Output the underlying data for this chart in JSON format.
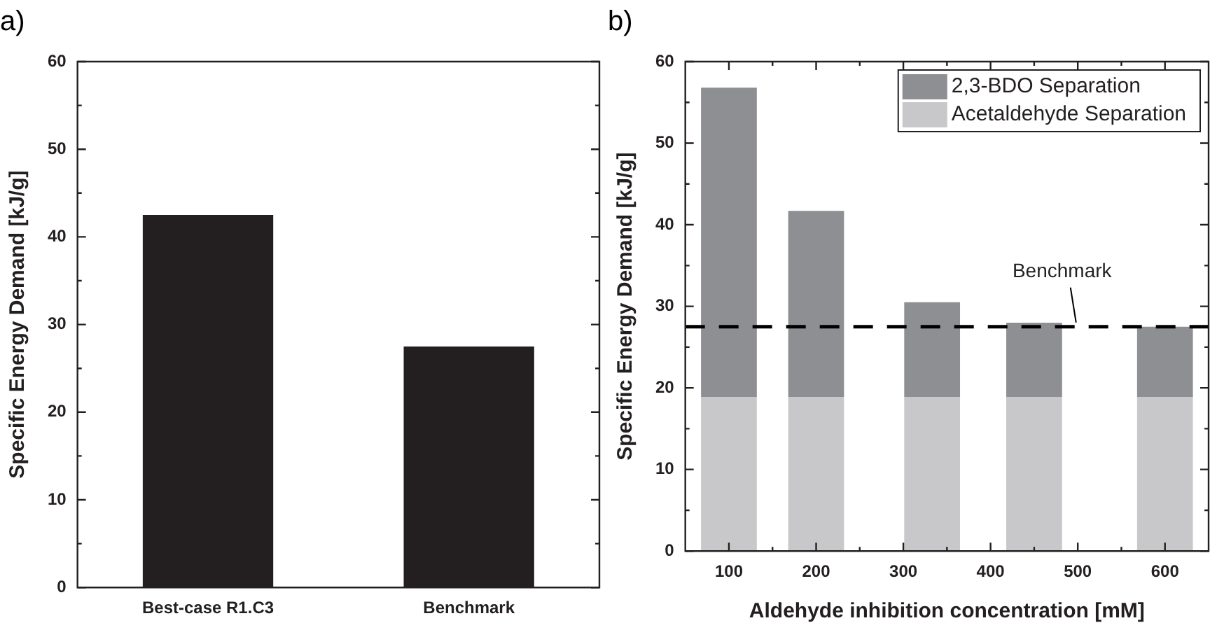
{
  "chart_data": [
    {
      "type": "bar",
      "title": "a)",
      "ylabel": "Specific Energy Demand [kJ/g]",
      "categories": [
        "Best-case R1.C3",
        "Benchmark"
      ],
      "values": [
        42.5,
        27.5
      ],
      "color": "#231f20",
      "ylim": [
        0,
        60
      ],
      "yticks": [
        0,
        {
          "value": 5,
          "label": null
        },
        10,
        {
          "value": 15,
          "label": null
        },
        20,
        {
          "value": 25,
          "label": null
        },
        30,
        {
          "value": 35,
          "label": null
        },
        40,
        {
          "value": 45,
          "label": null
        },
        50,
        {
          "value": 55,
          "label": null
        },
        60
      ],
      "grid": false,
      "legend": false
    },
    {
      "type": "bar",
      "title": "b)",
      "xlabel": "Aldehyde inhibition concentration [mM]",
      "ylabel": "Specific Energy Demand [kJ/g]",
      "x": [
        100,
        200,
        333,
        450,
        600
      ],
      "stacked": true,
      "series": [
        {
          "name": "Acetaldehyde Separation",
          "color": "#c8c8ca",
          "values": [
            18.9,
            18.9,
            18.9,
            18.9,
            18.9
          ]
        },
        {
          "name": "2,3-BDO Separation",
          "color": "#8e8f93",
          "values": [
            37.9,
            22.8,
            11.6,
            9.1,
            8.6
          ]
        }
      ],
      "xlim": [
        50,
        650
      ],
      "xticks": [
        100,
        {
          "value": 150,
          "label": null
        },
        200,
        {
          "value": 250,
          "label": null
        },
        300,
        {
          "value": 350,
          "label": null
        },
        400,
        {
          "value": 450,
          "label": null
        },
        500,
        {
          "value": 550,
          "label": null
        },
        600
      ],
      "ylim": [
        0,
        60
      ],
      "yticks": [
        0,
        {
          "value": 5,
          "label": null
        },
        10,
        {
          "value": 15,
          "label": null
        },
        20,
        {
          "value": 25,
          "label": null
        },
        30,
        {
          "value": 35,
          "label": null
        },
        40,
        {
          "value": 45,
          "label": null
        },
        50,
        {
          "value": 55,
          "label": null
        },
        60
      ],
      "ref_lines": [
        {
          "axis": "y",
          "value": 27.5,
          "label": "Benchmark",
          "color": "#000000",
          "line_style": "dashed"
        }
      ],
      "grid": false,
      "legend": "top right"
    }
  ]
}
